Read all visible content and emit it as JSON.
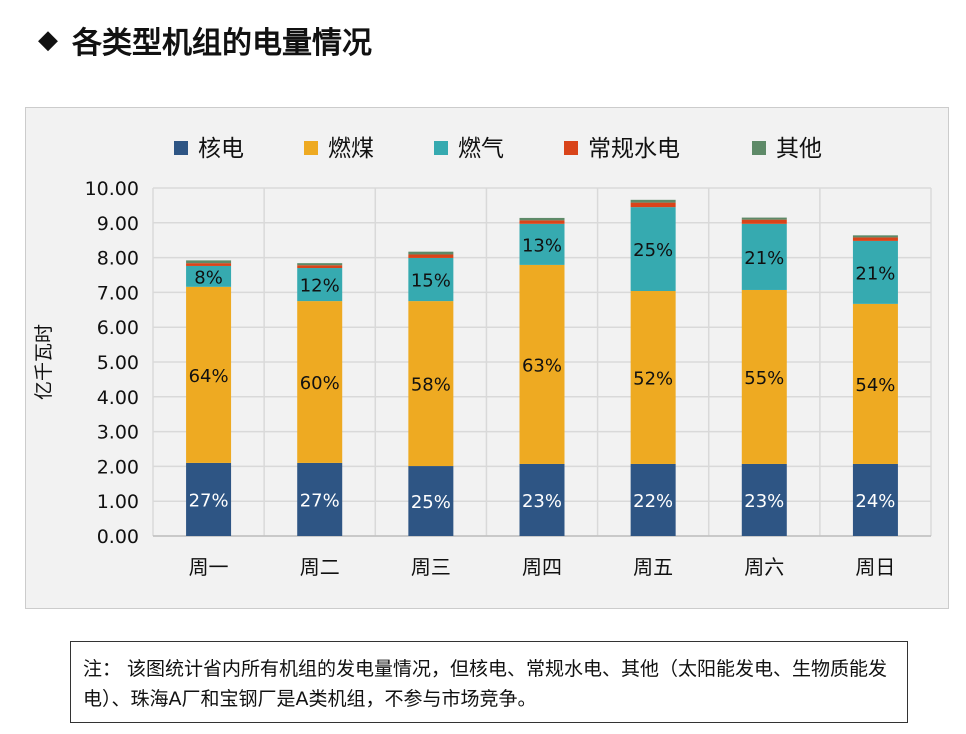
{
  "title": "各类型机组的电量情况",
  "note": "注： 该图统计省内所有机组的发电量情况，但核电、常规水电、其他（太阳能发电、生物质能发电）、珠海A厂和宝钢厂是A类机组，不参与市场竞争。",
  "chart_data": {
    "type": "bar",
    "stacked": true,
    "ylabel": "亿千瓦时",
    "ylim": [
      0,
      10
    ],
    "yticks": [
      "0.00",
      "1.00",
      "2.00",
      "3.00",
      "4.00",
      "5.00",
      "6.00",
      "7.00",
      "8.00",
      "9.00",
      "10.00"
    ],
    "grid": true,
    "legend_position": "top",
    "categories": [
      "周一",
      "周二",
      "周三",
      "周四",
      "周五",
      "周六",
      "周日"
    ],
    "series": [
      {
        "name": "核电",
        "color": "#2e5584",
        "values": [
          2.1,
          2.1,
          2.01,
          2.07,
          2.07,
          2.07,
          2.07
        ],
        "labels": [
          "27%",
          "27%",
          "25%",
          "23%",
          "22%",
          "23%",
          "24%"
        ],
        "label_color": "#ffffff"
      },
      {
        "name": "燃煤",
        "color": "#eeaa22",
        "values": [
          5.06,
          4.65,
          4.74,
          5.72,
          4.97,
          5.0,
          4.6
        ],
        "labels": [
          "64%",
          "60%",
          "58%",
          "63%",
          "52%",
          "55%",
          "54%"
        ],
        "label_color": "#111111"
      },
      {
        "name": "燃气",
        "color": "#36aab0",
        "values": [
          0.6,
          0.95,
          1.24,
          1.18,
          2.41,
          1.9,
          1.81
        ],
        "labels": [
          "8%",
          "12%",
          "15%",
          "13%",
          "25%",
          "21%",
          "21%"
        ],
        "label_color": "#111111"
      },
      {
        "name": "常规水电",
        "color": "#d9441a",
        "values": [
          0.08,
          0.08,
          0.1,
          0.1,
          0.13,
          0.12,
          0.1
        ]
      },
      {
        "name": "其他",
        "color": "#5e8a68",
        "values": [
          0.08,
          0.06,
          0.08,
          0.07,
          0.08,
          0.06,
          0.06
        ]
      }
    ]
  }
}
